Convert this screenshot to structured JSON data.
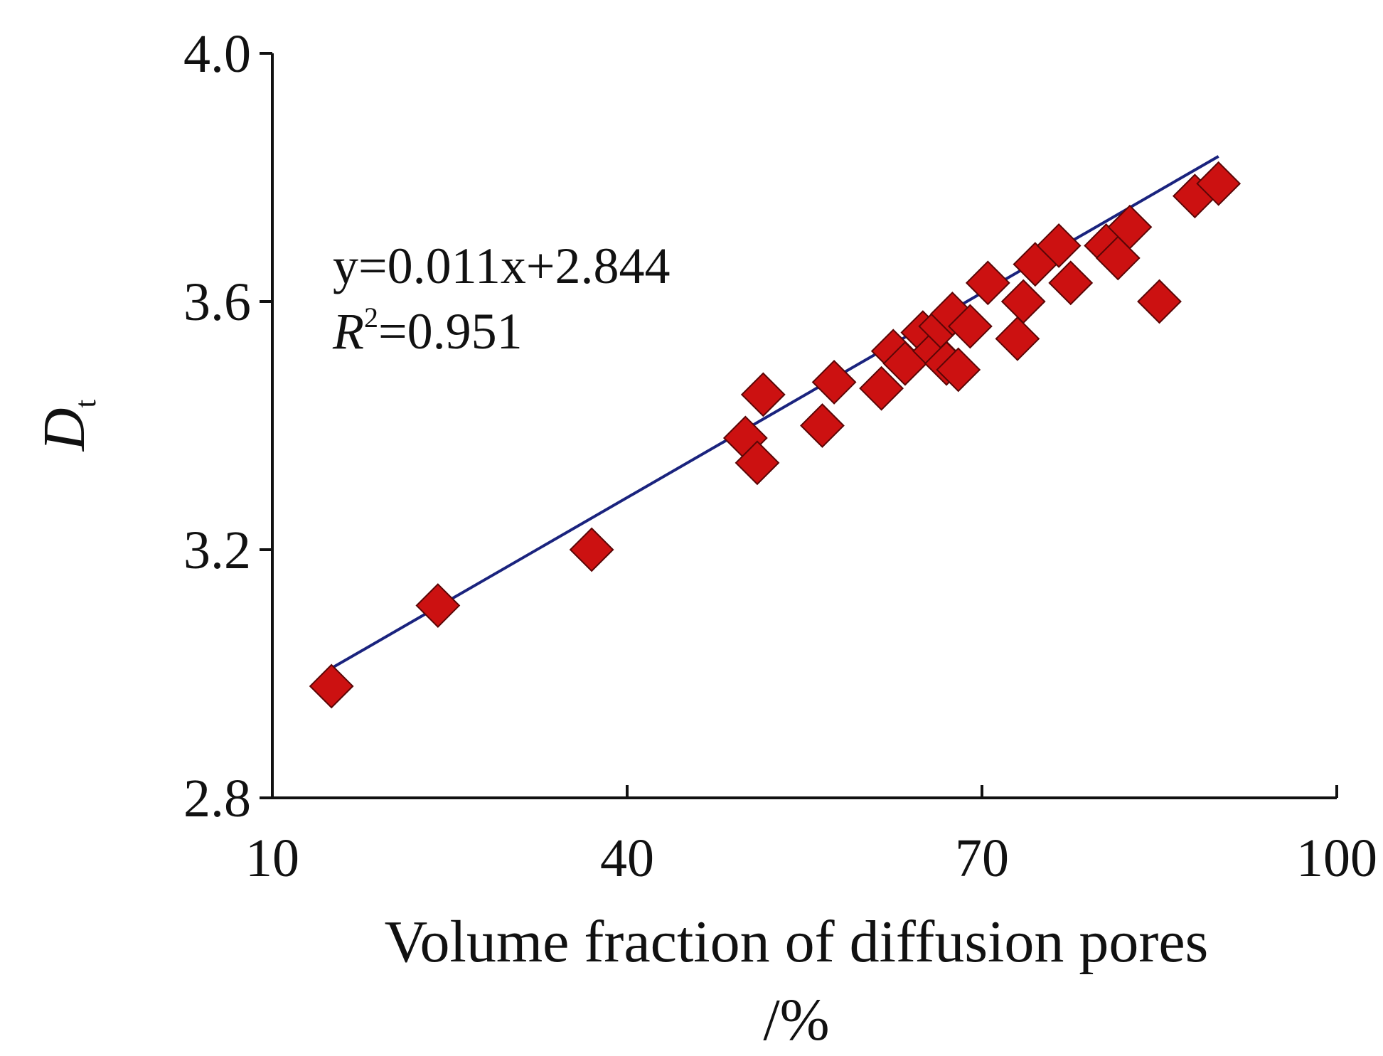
{
  "chart_data": {
    "type": "scatter",
    "title": "",
    "xlabel": "Volume fraction of diffusion pores",
    "xlabel_unit": "/%",
    "ylabel": {
      "main": "D",
      "sub": "t"
    },
    "xlim": [
      10,
      100
    ],
    "ylim": [
      2.8,
      4.0
    ],
    "xticks": [
      "10",
      "40",
      "70",
      "100"
    ],
    "yticks": [
      "2.8",
      "3.2",
      "3.6",
      "4.0"
    ],
    "grid": false,
    "legend": "none",
    "series": [
      {
        "name": "samples",
        "marker": "diamond",
        "color": "#cc1111",
        "points": [
          {
            "x": 15,
            "y": 2.98
          },
          {
            "x": 24,
            "y": 3.11
          },
          {
            "x": 37,
            "y": 3.2
          },
          {
            "x": 50,
            "y": 3.38
          },
          {
            "x": 51,
            "y": 3.34
          },
          {
            "x": 51.5,
            "y": 3.45
          },
          {
            "x": 56.5,
            "y": 3.4
          },
          {
            "x": 57.5,
            "y": 3.47
          },
          {
            "x": 61.5,
            "y": 3.46
          },
          {
            "x": 62.5,
            "y": 3.52
          },
          {
            "x": 63.5,
            "y": 3.5
          },
          {
            "x": 65,
            "y": 3.55
          },
          {
            "x": 66,
            "y": 3.52
          },
          {
            "x": 66.5,
            "y": 3.56
          },
          {
            "x": 67,
            "y": 3.5
          },
          {
            "x": 67.5,
            "y": 3.58
          },
          {
            "x": 68,
            "y": 3.49
          },
          {
            "x": 69,
            "y": 3.56
          },
          {
            "x": 70.5,
            "y": 3.63
          },
          {
            "x": 73,
            "y": 3.54
          },
          {
            "x": 73.5,
            "y": 3.6
          },
          {
            "x": 74.5,
            "y": 3.66
          },
          {
            "x": 76.5,
            "y": 3.69
          },
          {
            "x": 77.5,
            "y": 3.63
          },
          {
            "x": 80.5,
            "y": 3.69
          },
          {
            "x": 81.5,
            "y": 3.67
          },
          {
            "x": 82.5,
            "y": 3.72
          },
          {
            "x": 85,
            "y": 3.6
          },
          {
            "x": 88,
            "y": 3.77
          },
          {
            "x": 90,
            "y": 3.79
          }
        ]
      }
    ],
    "fit_line": {
      "slope": 0.011,
      "intercept": 2.844,
      "x_range": [
        15,
        90
      ],
      "color": "#1a237e"
    },
    "annotations": {
      "equation": "y=0.011x+2.844",
      "r2_var": "R",
      "r2_sup": "2",
      "r2_value": "=0.951"
    }
  }
}
